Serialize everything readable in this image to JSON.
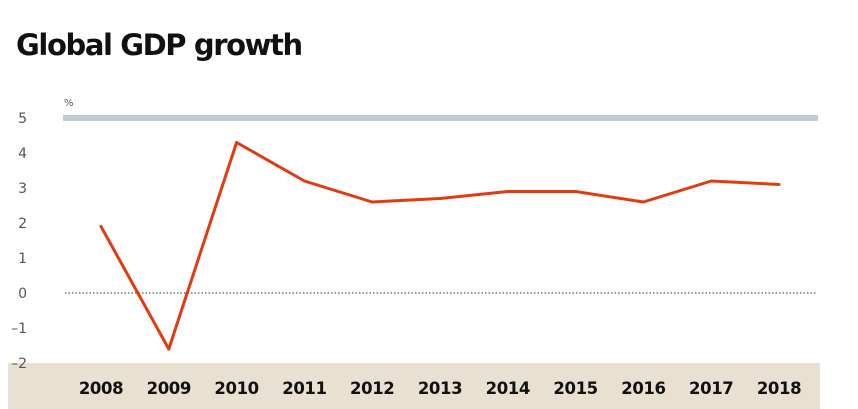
{
  "chart_data": {
    "type": "line",
    "title": "Global GDP growth",
    "unit_label": "%",
    "x": [
      "2008",
      "2009",
      "2010",
      "2011",
      "2012",
      "2013",
      "2014",
      "2015",
      "2016",
      "2017",
      "2018"
    ],
    "series": [
      {
        "values": [
          1.9,
          -1.6,
          4.3,
          3.2,
          2.6,
          2.7,
          2.9,
          2.9,
          2.6,
          3.2,
          3.1
        ]
      }
    ],
    "y_ticks": [
      "5",
      "4",
      "3",
      "2",
      "1",
      "0",
      "–1",
      "–2"
    ],
    "ylim": [
      -2,
      5
    ],
    "grid": false,
    "colors": {
      "line": "#e03c0f",
      "top_rule": "#c0ccd2",
      "zero_line": "#333333",
      "x_band": "#e8e1d2"
    }
  }
}
